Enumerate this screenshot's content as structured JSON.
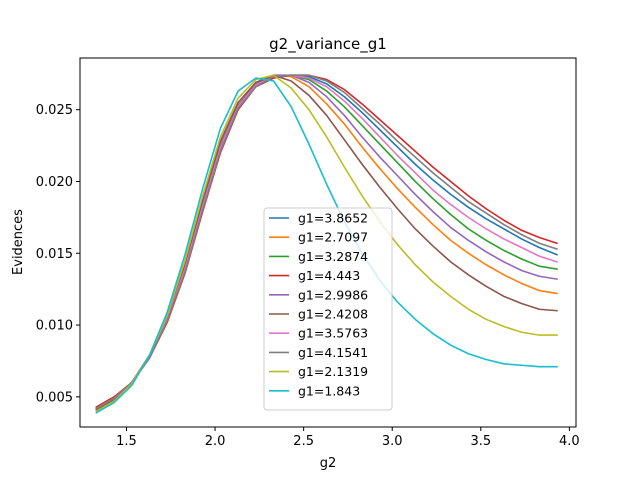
{
  "chart_data": {
    "type": "line",
    "title": "g2_variance_g1",
    "xlabel": "g2",
    "ylabel": "Evidences",
    "xlim": [
      1.2375,
      4.0375
    ],
    "ylim": [
      0.0029,
      0.0286
    ],
    "xticks": [
      1.5,
      2.0,
      2.5,
      3.0,
      3.5,
      4.0
    ],
    "xtick_labels": [
      "1.5",
      "2.0",
      "2.5",
      "3.0",
      "3.5",
      "4.0"
    ],
    "yticks": [
      0.005,
      0.01,
      0.015,
      0.02,
      0.025
    ],
    "ytick_labels": [
      "0.005",
      "0.010",
      "0.015",
      "0.020",
      "0.025"
    ],
    "grid": false,
    "legend_position": "lower center",
    "x": [
      1.33,
      1.43,
      1.53,
      1.63,
      1.73,
      1.83,
      1.93,
      2.03,
      2.13,
      2.23,
      2.33,
      2.43,
      2.53,
      2.63,
      2.73,
      2.83,
      2.93,
      3.03,
      3.13,
      3.23,
      3.33,
      3.43,
      3.53,
      3.63,
      3.73,
      3.83,
      3.93
    ],
    "series": [
      {
        "name": "g1=3.8652",
        "color": "#1f77b4",
        "values": [
          0.0042,
          0.0049,
          0.006,
          0.0078,
          0.0103,
          0.0138,
          0.0181,
          0.0222,
          0.0251,
          0.0267,
          0.0273,
          0.0274,
          0.0273,
          0.0268,
          0.0259,
          0.0248,
          0.0236,
          0.0224,
          0.0212,
          0.0201,
          0.0191,
          0.0182,
          0.0174,
          0.0167,
          0.016,
          0.0154,
          0.0149
        ]
      },
      {
        "name": "g1=2.7097",
        "color": "#ff7f0e",
        "values": [
          0.0041,
          0.0048,
          0.006,
          0.0079,
          0.0105,
          0.0142,
          0.0185,
          0.0226,
          0.0253,
          0.0268,
          0.0274,
          0.0273,
          0.0266,
          0.0254,
          0.024,
          0.0224,
          0.0209,
          0.0195,
          0.0182,
          0.017,
          0.0159,
          0.015,
          0.0142,
          0.0135,
          0.0129,
          0.0124,
          0.0122
        ]
      },
      {
        "name": "g1=3.2874",
        "color": "#2ca02c",
        "values": [
          0.0042,
          0.0049,
          0.006,
          0.0078,
          0.0104,
          0.014,
          0.0183,
          0.0224,
          0.0252,
          0.0267,
          0.0273,
          0.0274,
          0.0271,
          0.0263,
          0.0252,
          0.0239,
          0.0226,
          0.0213,
          0.02,
          0.0188,
          0.0177,
          0.0167,
          0.0159,
          0.0152,
          0.0146,
          0.0141,
          0.0139
        ]
      },
      {
        "name": "g1=4.443",
        "color": "#d62728",
        "values": [
          0.0043,
          0.005,
          0.006,
          0.0077,
          0.0102,
          0.0136,
          0.0179,
          0.022,
          0.025,
          0.0266,
          0.0272,
          0.0274,
          0.0274,
          0.0271,
          0.0264,
          0.0254,
          0.0243,
          0.0232,
          0.0221,
          0.021,
          0.02,
          0.019,
          0.0181,
          0.0173,
          0.0166,
          0.0161,
          0.0157
        ]
      },
      {
        "name": "g1=2.9986",
        "color": "#9467bd",
        "values": [
          0.0042,
          0.0049,
          0.006,
          0.0078,
          0.0105,
          0.0141,
          0.0184,
          0.0225,
          0.0253,
          0.0268,
          0.0274,
          0.0274,
          0.0269,
          0.0259,
          0.0246,
          0.0231,
          0.0217,
          0.0204,
          0.0191,
          0.0179,
          0.0168,
          0.0159,
          0.0151,
          0.0144,
          0.0138,
          0.0134,
          0.0132
        ]
      },
      {
        "name": "g1=2.4208",
        "color": "#8c564b",
        "values": [
          0.0041,
          0.0048,
          0.006,
          0.0079,
          0.0106,
          0.0143,
          0.0187,
          0.0228,
          0.0255,
          0.0269,
          0.0274,
          0.027,
          0.026,
          0.0246,
          0.0229,
          0.0212,
          0.0196,
          0.0181,
          0.0167,
          0.0155,
          0.0144,
          0.0135,
          0.0127,
          0.012,
          0.0115,
          0.0111,
          0.011
        ]
      },
      {
        "name": "g1=3.5763",
        "color": "#e377c2",
        "values": [
          0.0042,
          0.0049,
          0.006,
          0.0078,
          0.0104,
          0.0139,
          0.0182,
          0.0223,
          0.0252,
          0.0267,
          0.0273,
          0.0274,
          0.0272,
          0.0266,
          0.0256,
          0.0244,
          0.0231,
          0.0218,
          0.0206,
          0.0194,
          0.0184,
          0.0175,
          0.0167,
          0.016,
          0.0154,
          0.0148,
          0.0144
        ]
      },
      {
        "name": "g1=4.1541",
        "color": "#7f7f7f",
        "values": [
          0.0042,
          0.0049,
          0.006,
          0.0077,
          0.0103,
          0.0137,
          0.018,
          0.0221,
          0.0251,
          0.0266,
          0.0273,
          0.0274,
          0.0274,
          0.027,
          0.0262,
          0.0251,
          0.024,
          0.0228,
          0.0217,
          0.0206,
          0.0196,
          0.0186,
          0.0178,
          0.017,
          0.0163,
          0.0157,
          0.0153
        ]
      },
      {
        "name": "g1=2.1319",
        "color": "#bcbd22",
        "values": [
          0.004,
          0.0047,
          0.0059,
          0.0079,
          0.0107,
          0.0145,
          0.019,
          0.0231,
          0.0258,
          0.0271,
          0.0274,
          0.0265,
          0.025,
          0.0231,
          0.021,
          0.019,
          0.0172,
          0.0156,
          0.0142,
          0.013,
          0.012,
          0.0111,
          0.0104,
          0.0099,
          0.0095,
          0.0093,
          0.0093
        ]
      },
      {
        "name": "g1=1.843",
        "color": "#17becf",
        "values": [
          0.0039,
          0.0046,
          0.0058,
          0.0079,
          0.0109,
          0.0149,
          0.0195,
          0.0237,
          0.0263,
          0.0272,
          0.027,
          0.0252,
          0.0226,
          0.0198,
          0.0172,
          0.015,
          0.0131,
          0.0116,
          0.0104,
          0.0094,
          0.0086,
          0.008,
          0.0076,
          0.0073,
          0.0072,
          0.0071,
          0.0071
        ]
      }
    ]
  }
}
